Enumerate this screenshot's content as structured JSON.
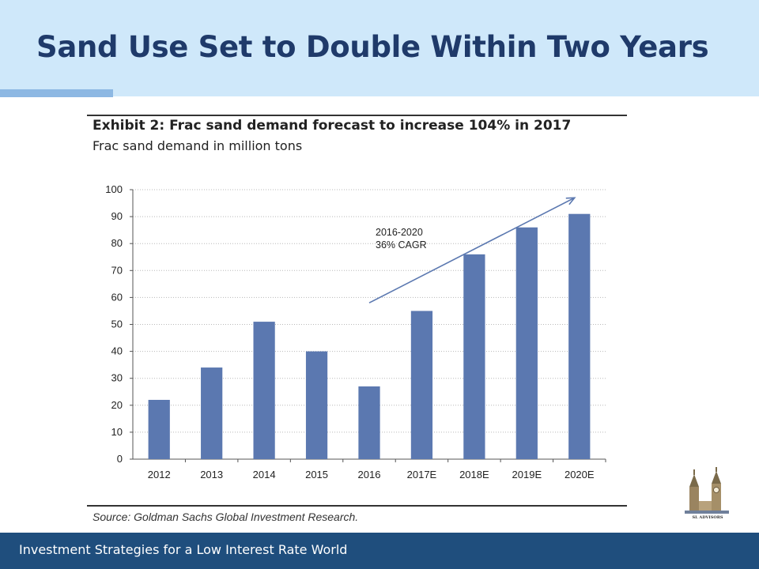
{
  "slide": {
    "title": "Sand Use Set to Double Within Two Years",
    "footer": "Investment Strategies for a Low Interest Rate World"
  },
  "exhibit": {
    "title": "Exhibit 2: Frac sand demand forecast to increase 104% in 2017",
    "subtitle": "Frac sand demand in million tons",
    "source": "Source: Goldman Sachs Global Investment Research."
  },
  "logo": {
    "text": "SL ADVISORS"
  },
  "chart_data": {
    "type": "bar",
    "categories": [
      "2012",
      "2013",
      "2014",
      "2015",
      "2016",
      "2017E",
      "2018E",
      "2019E",
      "2020E"
    ],
    "values": [
      22,
      34,
      51,
      40,
      27,
      55,
      76,
      86,
      91
    ],
    "yticks": [
      "0",
      "10",
      "20",
      "30",
      "40",
      "50",
      "60",
      "70",
      "80",
      "90",
      "100"
    ],
    "ylim": [
      0,
      100
    ],
    "grid": true,
    "bar_color": "#5b78b0",
    "annotation": {
      "lines": [
        "2016-2020",
        "36% CAGR"
      ],
      "arrow_from": [
        "2016",
        58
      ],
      "arrow_to": [
        "2020E",
        97
      ]
    }
  }
}
